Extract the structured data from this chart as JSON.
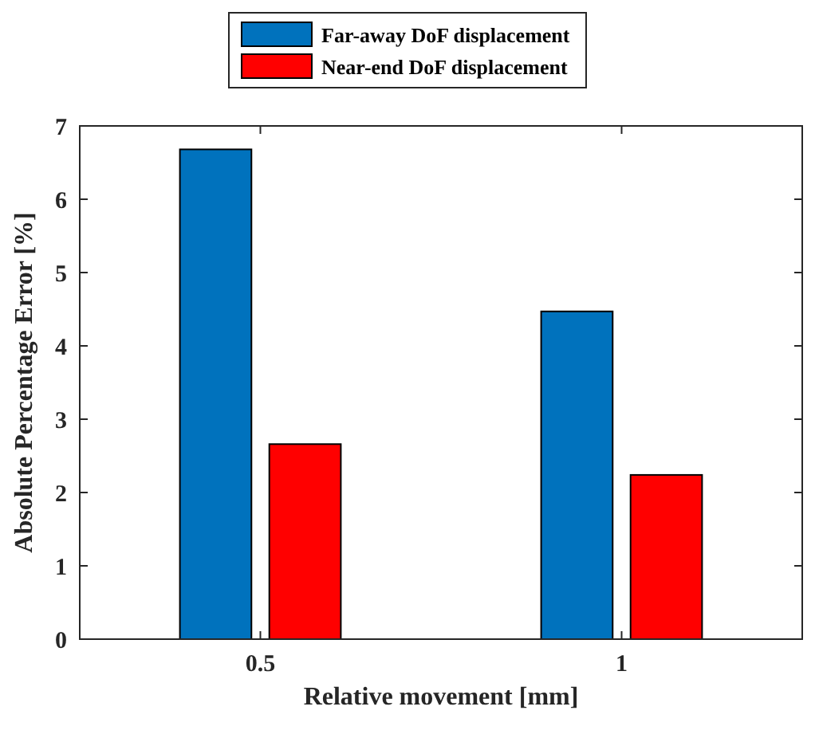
{
  "chart_data": {
    "type": "bar",
    "categories": [
      "0.5",
      "1"
    ],
    "xlabel": "Relative movement [mm]",
    "ylabel": "Absolute Percentage Error [%]",
    "ylim": [
      0,
      7
    ],
    "yticks": [
      0,
      1,
      2,
      3,
      4,
      5,
      6,
      7
    ],
    "legend": "top",
    "grid": false,
    "series": [
      {
        "name": "Far-away DoF displacement",
        "color": "#0072bd",
        "values": [
          6.68,
          4.47
        ]
      },
      {
        "name": "Near-end DoF displacement",
        "color": "#ff0000",
        "values": [
          2.66,
          2.24
        ]
      }
    ]
  }
}
